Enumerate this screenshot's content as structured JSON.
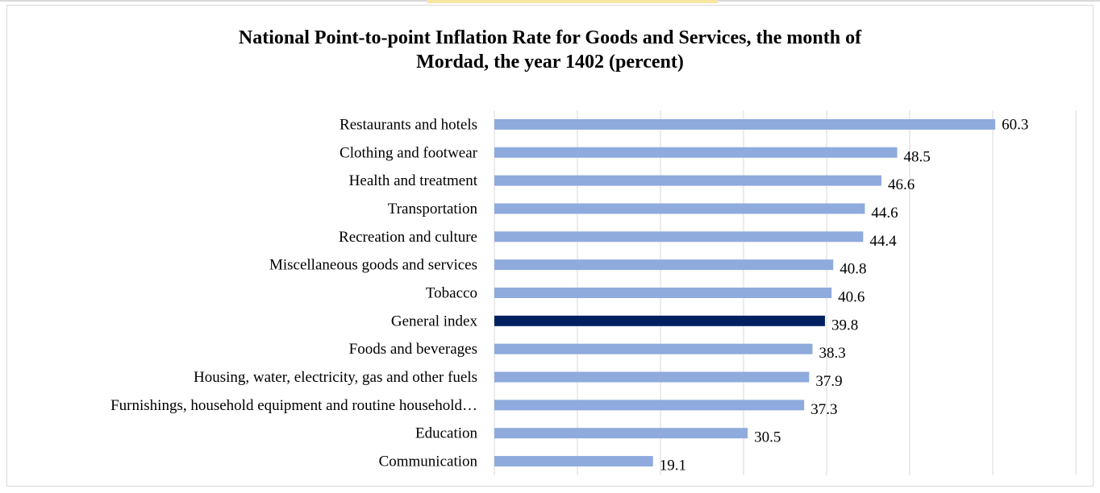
{
  "chart_data": {
    "type": "bar",
    "orientation": "horizontal",
    "title_line1": "National Point-to-point Inflation Rate for Goods and Services, the month of",
    "title_line2": "Mordad, the year 1402 (percent)",
    "categories": [
      "Restaurants and hotels",
      "Clothing and footwear",
      "Health and treatment",
      "Transportation",
      "Recreation and culture",
      "Miscellaneous goods and services",
      "Tobacco",
      "General index",
      "Foods and beverages",
      "Housing, water, electricity, gas and other fuels",
      "Furnishings, household equipment and routine household…",
      "Education",
      "Communication"
    ],
    "values": [
      60.3,
      48.5,
      46.6,
      44.6,
      44.4,
      40.8,
      40.6,
      39.8,
      38.3,
      37.9,
      37.3,
      30.5,
      19.1
    ],
    "highlight_category": "General index",
    "xlim": [
      0,
      70
    ],
    "grid": true,
    "colors": {
      "bar": "#8faadc",
      "highlight": "#002060",
      "grid": "#d9d9d9"
    }
  }
}
